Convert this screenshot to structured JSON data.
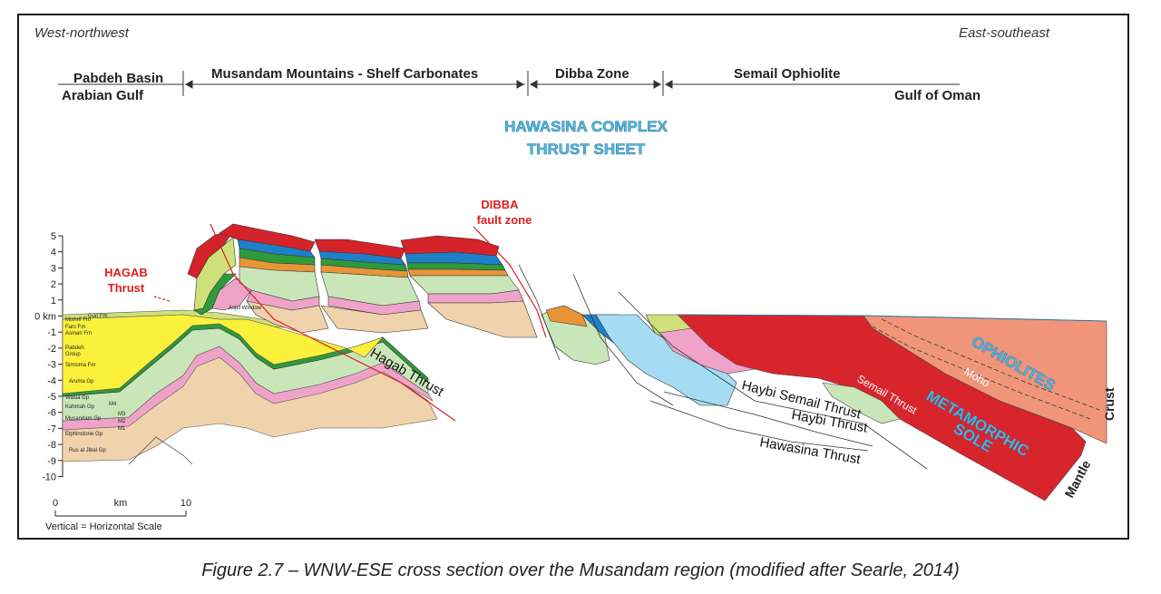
{
  "directions": {
    "left": "West-northwest",
    "right": "East-southeast"
  },
  "zones": {
    "pabdeh": "Pabdeh Basin",
    "arabian_gulf": "Arabian Gulf",
    "musandam": "Musandam Mountains - Shelf Carbonates",
    "dibba": "Dibba Zone",
    "semail": "Semail Ophiolite",
    "gulf_oman": "Gulf of Oman"
  },
  "hawasina": {
    "line1": "HAWASINA COMPLEX",
    "line2": "THRUST SHEET"
  },
  "red_labels": {
    "dibba_line1": "DIBBA",
    "dibba_line2": "fault zone",
    "hagab_line1": "HAGAB",
    "hagab_line2": "Thrust"
  },
  "faults": {
    "hagab": "Hagab Thrust",
    "haybi_semail": "Haybi Semail Thrust",
    "haybi": "Haybi Thrust",
    "hawasina": "Hawasina Thrust",
    "semail": "Semail Thrust",
    "moho": "Moho"
  },
  "units": {
    "ophiolites": "OPHIOLITES",
    "sole_line1": "METAMORPHIC",
    "sole_line2": "SOLE",
    "crust": "Crust",
    "mantle": "Mantle"
  },
  "depth_axis": {
    "ticks": [
      "5",
      "4",
      "3",
      "2",
      "1",
      "0 km",
      "-1",
      "-2",
      "-3",
      "-4",
      "-5",
      "-6",
      "-7",
      "-8",
      "-9",
      "-10"
    ]
  },
  "formations": {
    "mishrif": "Mishrif Fm",
    "guri": "Guri Fm",
    "fars": "Fars Fm",
    "asmari": "Asmari Fm",
    "pabdeh_group_1": "Pabdeh",
    "pabdeh_group_2": "Group",
    "simsima": "Simsima Fm",
    "aruma": "Aruma Gp",
    "wasia": "Wasia Gp",
    "kahmah": "Kahmah Gp",
    "musandam": "Musandam Gp",
    "m4": "M4",
    "m3": "M3",
    "m2": "M2",
    "m1": "M1",
    "elphinstone": "Elphinstone Gp",
    "ras_al_khaimah": "Rus al Jibal Gp",
    "window": "Asjel Window"
  },
  "scale": {
    "zero": "0",
    "unit": "km",
    "ten": "10",
    "note": "Vertical = Horizontal Scale"
  },
  "caption": "Figure 2.7 – WNW-ESE cross section over the Musandam region (modified after Searle, 2014)",
  "colors": {
    "tan": "#f0d2ad",
    "pink": "#f0a3c8",
    "green_light": "#c9e6b9",
    "green_dark": "#2e9b3a",
    "orange": "#e8953a",
    "olive": "#cfe07a",
    "yellow": "#fbf13a",
    "blue_dark": "#1f7fc8",
    "blue_light": "#a5dcf3",
    "red": "#d5232a",
    "salmon": "#f0957a",
    "sole_red": "#d8242b",
    "label_blue": "#4fb8e4",
    "label_red": "#e01c1c"
  }
}
